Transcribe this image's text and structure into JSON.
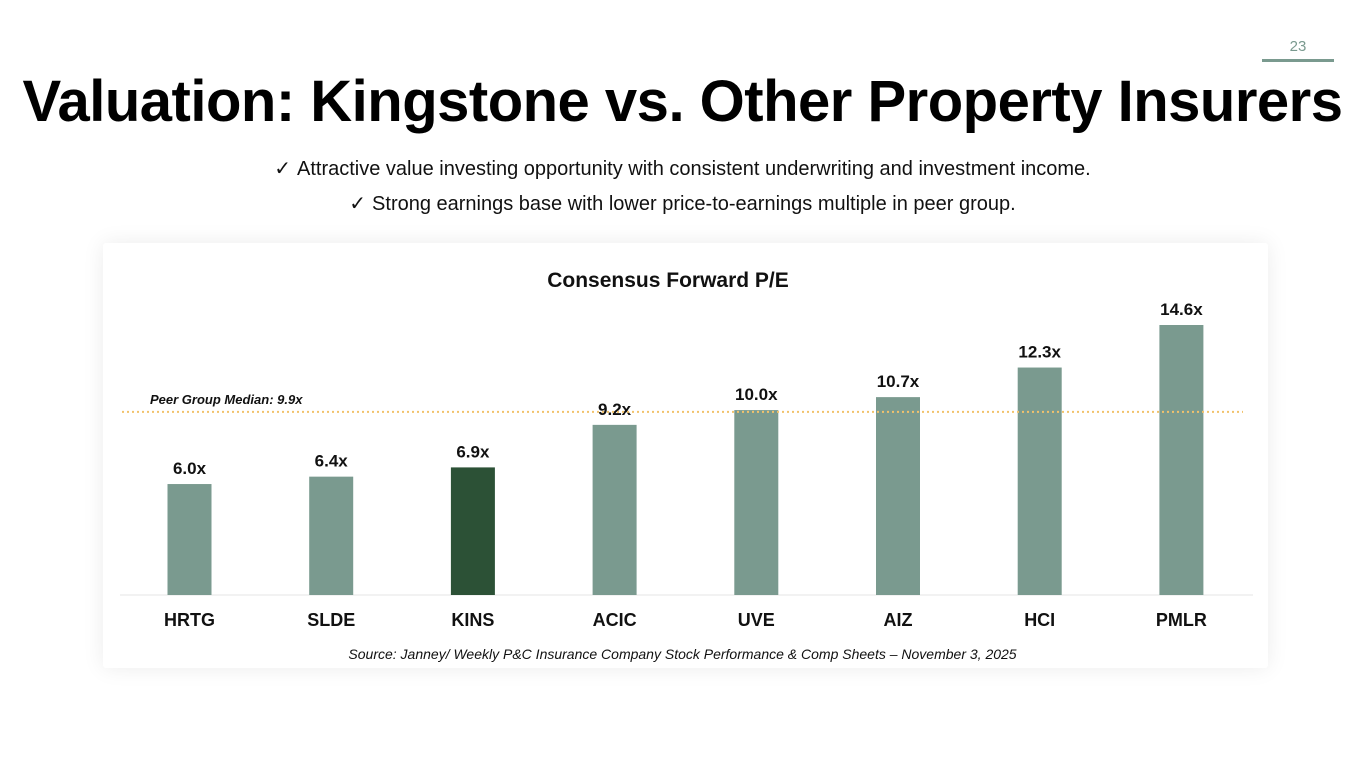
{
  "slide": {
    "page_number": "23",
    "title": "Valuation: Kingstone vs. Other Property Insurers",
    "bullets": [
      {
        "icon": "checkmark-icon",
        "glyph": "✓",
        "text": "Attractive value investing opportunity with consistent underwriting and investment income."
      },
      {
        "icon": "checkmark-icon",
        "glyph": "✓",
        "text": "Strong earnings base with lower price-to-earnings multiple in peer group."
      }
    ],
    "source": "Source: Janney/ Weekly P&C Insurance Company Stock Performance & Comp Sheets – November 3, 2025"
  },
  "colors": {
    "bar_default": "#7a9a8f",
    "bar_highlight": "#2c5136",
    "median_line": "#f2c26b",
    "accent": "#7a9a8f"
  },
  "chart_data": {
    "type": "bar",
    "title": "Consensus Forward P/E",
    "xlabel": "",
    "ylabel": "",
    "categories": [
      "HRTG",
      "SLDE",
      "KINS",
      "ACIC",
      "UVE",
      "AIZ",
      "HCI",
      "PMLR"
    ],
    "values": [
      6.0,
      6.4,
      6.9,
      9.2,
      10.0,
      10.7,
      12.3,
      14.6
    ],
    "data_labels": [
      "6.0x",
      "6.4x",
      "6.9x",
      "9.2x",
      "10.0x",
      "10.7x",
      "12.3x",
      "14.6x"
    ],
    "highlight": "KINS",
    "ylim": [
      0,
      14.6
    ],
    "grid": false,
    "reference_line": {
      "label": "Peer Group Median: 9.9x",
      "value": 9.9,
      "style": "dotted"
    }
  }
}
